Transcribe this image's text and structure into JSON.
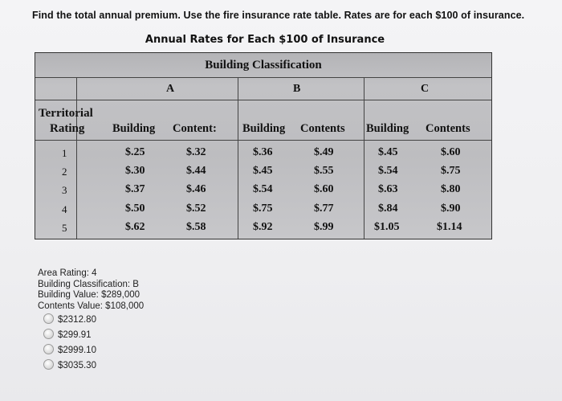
{
  "question": "Find the total annual premium. Use the fire insurance rate table. Rates are for each $100 of insurance.",
  "table": {
    "caption": "Annual Rates for Each $100 of Insurance",
    "classification_header": "Building Classification",
    "classes": [
      "A",
      "B",
      "C"
    ],
    "territorial_header_line1": "Territorial",
    "territorial_header_line2": "Rating",
    "col_building": "Building",
    "col_contents": "Contents",
    "col_contents_a": "Content:",
    "rows": [
      {
        "rating": "1",
        "a_building": "$.25",
        "a_contents": "$.32",
        "b_building": "$.36",
        "b_contents": "$.49",
        "c_building": "$.45",
        "c_contents": "$.60"
      },
      {
        "rating": "2",
        "a_building": "$.30",
        "a_contents": "$.44",
        "b_building": "$.45",
        "b_contents": "$.55",
        "c_building": "$.54",
        "c_contents": "$.75"
      },
      {
        "rating": "3",
        "a_building": "$.37",
        "a_contents": "$.46",
        "b_building": "$.54",
        "b_contents": "$.60",
        "c_building": "$.63",
        "c_contents": "$.80"
      },
      {
        "rating": "4",
        "a_building": "$.50",
        "a_contents": "$.52",
        "b_building": "$.75",
        "b_contents": "$.77",
        "c_building": "$.84",
        "c_contents": "$.90"
      },
      {
        "rating": "5",
        "a_building": "$.62",
        "a_contents": "$.58",
        "b_building": "$.92",
        "b_contents": "$.99",
        "c_building": "$1.05",
        "c_contents": "$1.14"
      }
    ]
  },
  "details": {
    "area_rating": "Area Rating: 4",
    "building_classification": "Building Classification: B",
    "building_value": "Building Value: $289,000",
    "contents_value": "Contents Value: $108,000"
  },
  "options": [
    "$2312.80",
    "$299.91",
    "$2999.10",
    "$3035.30"
  ]
}
